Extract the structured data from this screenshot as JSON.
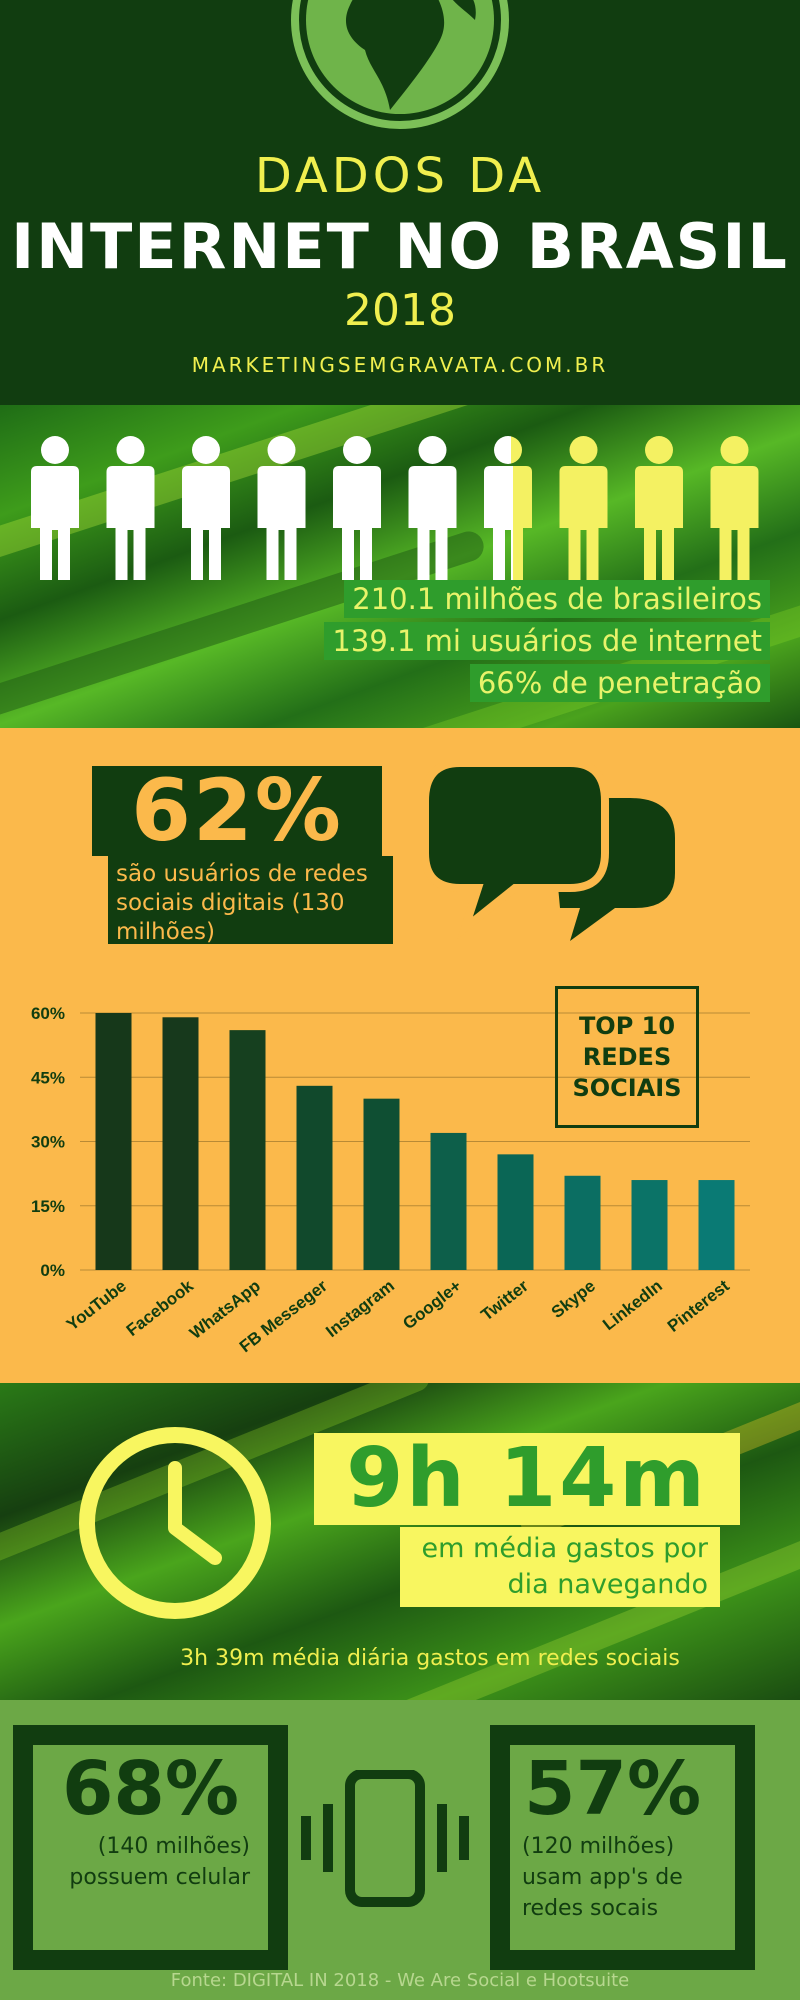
{
  "header": {
    "line1": "DADOS DA",
    "line2": "INTERNET NO BRASIL",
    "line3": "2018",
    "site": "MARKETINGSEMGRAVATA.COM.BR"
  },
  "people": {
    "stats": [
      "210.1 milhões de brasileiros",
      "139.1 mi usuários de internet",
      "66% de penetração"
    ],
    "penetration_fraction": 0.66,
    "figure_count": 10
  },
  "social": {
    "percent": "62%",
    "description": "são usuários de redes sociais digitais (130 milhões)",
    "top10_label": "TOP 10 REDES SOCIAIS"
  },
  "chart_data": {
    "type": "bar",
    "categories": [
      "YouTube",
      "Facebook",
      "WhatsApp",
      "FB Messeger",
      "Instagram",
      "Google+",
      "Twitter",
      "Skype",
      "LinkedIn",
      "Pinterest"
    ],
    "values": [
      60,
      59,
      56,
      43,
      40,
      32,
      27,
      22,
      21,
      21
    ],
    "yticks": [
      "0%",
      "15%",
      "30%",
      "45%",
      "60%"
    ],
    "ylim": [
      0,
      60
    ],
    "colors": [
      "#16381a",
      "#17391c",
      "#16401f",
      "#11492c",
      "#0f4f33",
      "#0d5f4a",
      "#0a6655",
      "#0b6e62",
      "#0b7367",
      "#0a7a74"
    ],
    "grid": true
  },
  "time": {
    "big": "9h 14m",
    "sub": "em média gastos por dia navegando",
    "note": "3h 39m média diária gastos em redes sociais"
  },
  "mobile": {
    "left_percent": "68%",
    "left_desc": "(140 milhões) possuem celular",
    "right_percent": "57%",
    "right_desc": "(120 milhões) usam app's de redes socais"
  },
  "source": "Fonte: DIGITAL IN 2018 - We Are Social e Hootsuite"
}
